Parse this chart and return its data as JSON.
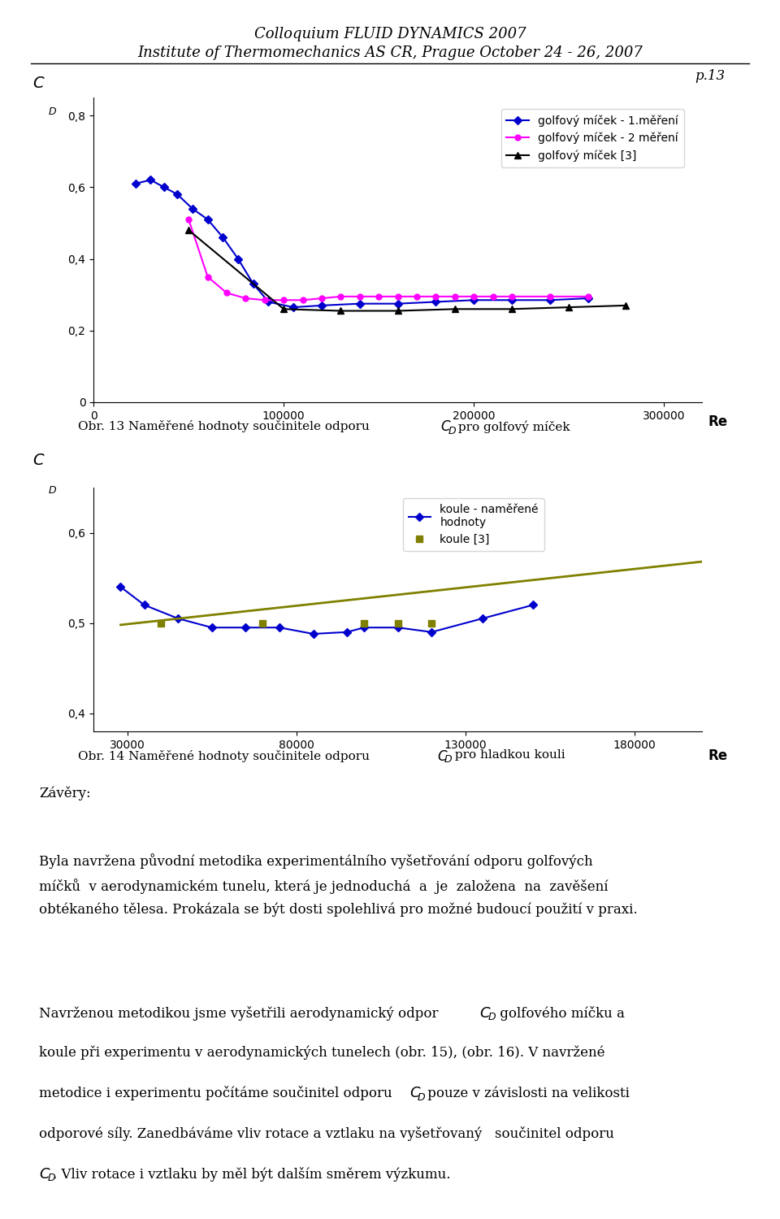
{
  "header_line1": "Colloquium FLUID DYNAMICS 2007",
  "header_line2": "Institute of Thermomechanics AS CR, Prague October 24 - 26, 2007",
  "page_number": "p.13",
  "chart1": {
    "title_label": "Obr. 13 Naměřené hodnoty součinitele odporu",
    "title_CD": "C",
    "title_D_sub": "D",
    "title_suffix": " pro golfový míček",
    "ylabel": "C",
    "ylabel_sub": "D",
    "xlabel": "Re",
    "ylim": [
      0,
      0.85
    ],
    "yticks": [
      0,
      0.2,
      0.4,
      0.6,
      0.8
    ],
    "ytick_labels": [
      "0",
      "0,2",
      "0,4",
      "0,6",
      "0,8"
    ],
    "xlim": [
      0,
      320000
    ],
    "xticks": [
      0,
      100000,
      200000,
      300000
    ],
    "xtick_labels": [
      "0",
      "100000",
      "200000",
      "300000"
    ],
    "series1_label": "golfový míček - 1.měření",
    "series1_color": "#0000CD",
    "series1_marker": "D",
    "series1_x": [
      22000,
      30000,
      37000,
      44000,
      52000,
      60000,
      68000,
      76000,
      84000,
      92000,
      105000,
      120000,
      140000,
      160000,
      180000,
      200000,
      220000,
      240000,
      260000
    ],
    "series1_y": [
      0.61,
      0.62,
      0.6,
      0.58,
      0.54,
      0.51,
      0.46,
      0.4,
      0.33,
      0.28,
      0.265,
      0.27,
      0.275,
      0.275,
      0.28,
      0.285,
      0.285,
      0.285,
      0.29
    ],
    "series2_label": "golfový míček - 2 měření",
    "series2_color": "#FF00FF",
    "series2_marker": "o",
    "series2_x": [
      50000,
      60000,
      70000,
      80000,
      90000,
      100000,
      110000,
      120000,
      130000,
      140000,
      150000,
      160000,
      170000,
      180000,
      190000,
      200000,
      210000,
      220000,
      240000,
      260000
    ],
    "series2_y": [
      0.51,
      0.35,
      0.305,
      0.29,
      0.285,
      0.285,
      0.285,
      0.29,
      0.295,
      0.295,
      0.295,
      0.295,
      0.295,
      0.295,
      0.295,
      0.295,
      0.295,
      0.295,
      0.295,
      0.295
    ],
    "series3_label": "golfový míček [3]",
    "series3_color": "#000000",
    "series3_marker": "^",
    "series3_x": [
      50000,
      100000,
      130000,
      160000,
      190000,
      220000,
      250000,
      280000
    ],
    "series3_y": [
      0.48,
      0.26,
      0.255,
      0.255,
      0.26,
      0.26,
      0.265,
      0.27
    ]
  },
  "chart2": {
    "title_label": "Obr. 14 Naměřené hodnoty součinitele odporu",
    "title_CD": "C",
    "title_D_sub": "D",
    "title_suffix": " pro hladkou kouli",
    "ylabel": "C",
    "ylabel_sub": "D",
    "xlabel": "Re",
    "ylim": [
      0.38,
      0.65
    ],
    "yticks": [
      0.4,
      0.5,
      0.6
    ],
    "ytick_labels": [
      "0,4",
      "0,5",
      "0,6"
    ],
    "xlim": [
      20000,
      200000
    ],
    "xticks": [
      30000,
      80000,
      130000,
      180000
    ],
    "xtick_labels": [
      "30000",
      "80000",
      "130000",
      "180000"
    ],
    "series1_label": "koule - naměřené\nhodnoty",
    "series1_color": "#0000CD",
    "series1_marker": "D",
    "series1_x": [
      28000,
      35000,
      45000,
      55000,
      65000,
      75000,
      85000,
      95000,
      100000,
      110000,
      120000,
      135000,
      150000
    ],
    "series1_y": [
      0.54,
      0.52,
      0.505,
      0.495,
      0.495,
      0.495,
      0.488,
      0.49,
      0.495,
      0.495,
      0.49,
      0.505,
      0.52
    ],
    "series2_label": "koule [3]",
    "series2_color": "#808000",
    "series2_marker": "s",
    "series2_x": [
      40000,
      70000,
      100000,
      110000,
      120000
    ],
    "series2_y": [
      0.5,
      0.5,
      0.5,
      0.5,
      0.5
    ],
    "series2_line_x": [
      28000,
      200000
    ],
    "series2_line_y": [
      0.498,
      0.568
    ]
  },
  "text_blocks": [
    {
      "type": "heading",
      "text": "Závěry:"
    },
    {
      "type": "paragraph",
      "text": "Byla navržena původní metodika experimentálního vyšetřování odporu golfových míčků  v aerodynamickém tunelu, která je jednoduchá  a  je  založena  na  zavěšení obtékaného tělesa. Prokázala se být dosti spolehlivá pro možné budoucí použití v praxi."
    },
    {
      "type": "paragraph",
      "text": "Navrženou metodikou jsme vyšetřili aerodynamický odpor C ᴰ golfového míčku a koule při experimentu v aerodynamických tunelech (obr. 15), (obr. 16). V navržené metodice i experimentu počítáme součinitel odporu C ᴰ pouze v závislosti na velikosti odporové síly. Zanedbáváme vliv rotace a vztlaku na vyšetřovaný  součinitel odporu C ᴰ. Vliv rotace i vztlaku by měl být dalším směrem výzkumu."
    }
  ],
  "background_color": "#ffffff"
}
